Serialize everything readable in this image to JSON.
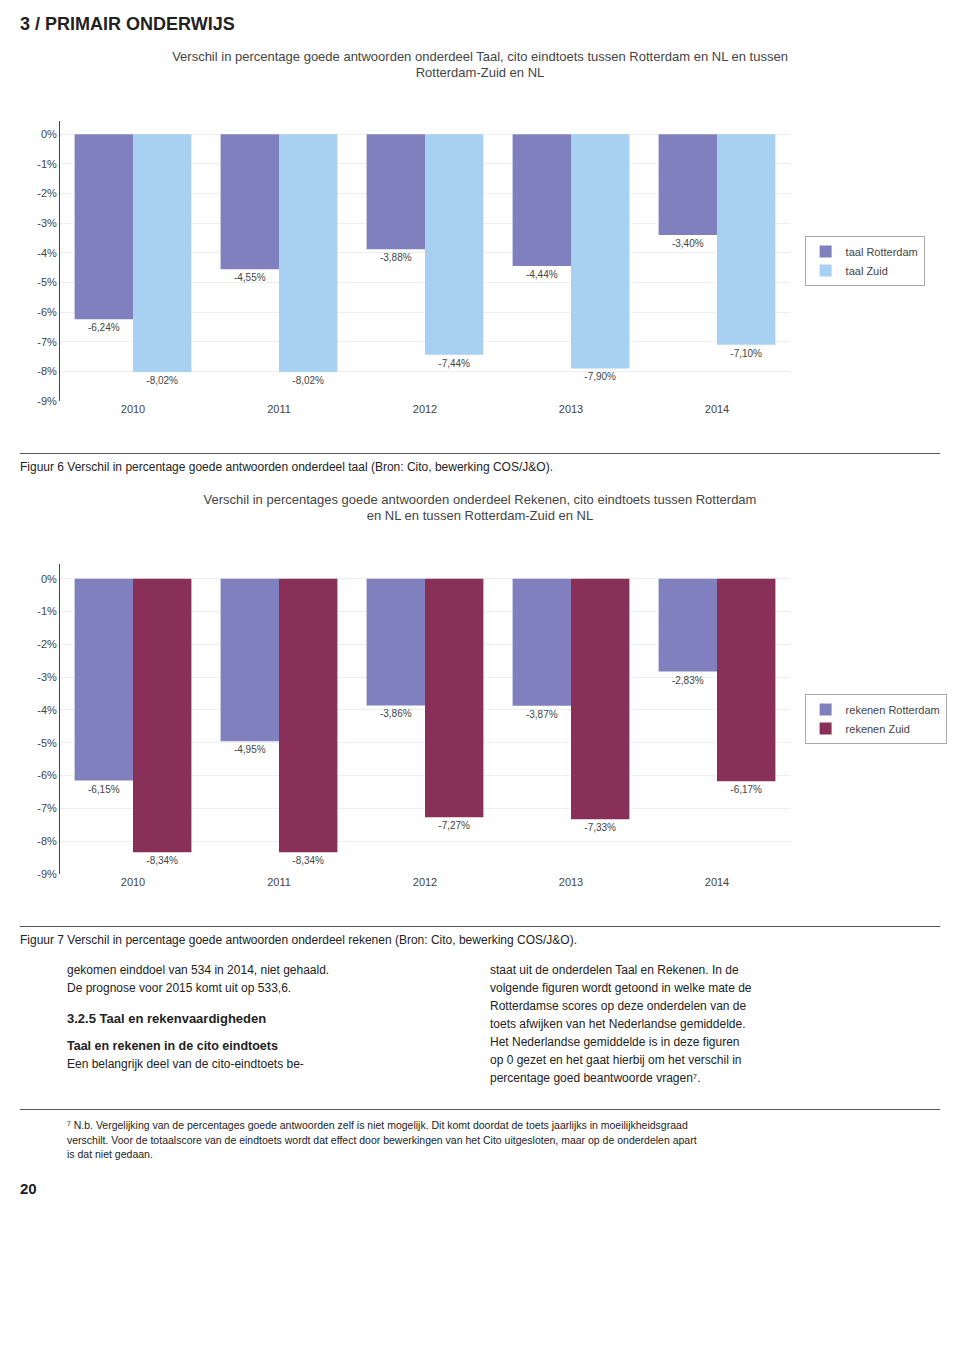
{
  "title": "3 / PRIMAIR ONDERWIJS",
  "annotations": [
    "gekomen einddoel van 534 in 2014, niet gehaald.\nDe prognose voor 2015 komt uit op 533,6.",
    "3.2.5 Taal en rekenvaardigheden",
    "Taal en rekenen in de cito eindtoets",
    "Een belangrijk deel van de cito-eindtoets be-",
    "staat uit de onderdelen Taal en Rekenen. In de\nvolgende figuren wordt getoond in welke mate de\nRotterdamse scores op deze onderdelen van de\ntoets afwijken van het Nederlandse gemiddelde.\nHet Nederlandse gemiddelde is in deze figuren\nop 0 gezet en het gaat hierbij om het verschil in\npercentage goed beantwoorde vragen⁷.",
    "⁷ N.b. Vergelijking van de percentages goede antwoorden zelf is niet mogelijk. Dit komt doordat de toets jaarlijks in moeilijkheidsgraad",
    "verschilt. Voor de totaalscore van de eindtoets wordt dat effect door bewerkingen van het Cito uitgesloten, maar op de onderdelen apart",
    "is dat niet gedaan.",
    "20"
  ],
  "chart_data": [
    {
      "type": "bar",
      "title": "Verschil in percentage goede antwoorden onderdeel Taal, cito eindtoets tussen Rotterdam en NL en tussen",
      "subtitle": "Rotterdam-Zuid en NL",
      "categories": [
        "2010",
        "2011",
        "2012",
        "2013",
        "2014"
      ],
      "series": [
        {
          "name": "taal Rotterdam",
          "color": "#8080bf",
          "values": [
            -6.24,
            -4.55,
            -3.88,
            -4.44,
            -3.4
          ],
          "value_labels": [
            "-6,24%",
            "-4,55%",
            "-3,88%",
            "-4,44%",
            "-3,40%"
          ]
        },
        {
          "name": "taal Zuid",
          "color": "#a8d0f0",
          "values": [
            -8.02,
            -8.02,
            -7.44,
            -7.9,
            -7.1
          ],
          "value_labels": [
            "-8,02%",
            "-8,02%",
            "-7,44%",
            "-7,90%",
            "-7,10%"
          ]
        }
      ],
      "ylim": [
        -9.0,
        0.45
      ],
      "yticks": [
        {
          "value": 0,
          "label": "0%"
        },
        {
          "value": -1,
          "label": "-1%"
        },
        {
          "value": -2,
          "label": "-2%"
        },
        {
          "value": -3,
          "label": "-3%"
        },
        {
          "value": -4,
          "label": "-4%"
        },
        {
          "value": -5,
          "label": "-5%"
        },
        {
          "value": -6,
          "label": "-6%"
        },
        {
          "value": -7,
          "label": "-7%"
        },
        {
          "value": -8,
          "label": "-8%"
        },
        {
          "value": -9,
          "label": "-9%"
        }
      ],
      "grid": true,
      "data_labels": true,
      "legend": "right",
      "annotations": [
        "Figuur 6 Verschil in percentage goede antwoorden onderdeel taal (Bron: Cito, bewerking COS/J&O)."
      ]
    },
    {
      "type": "bar",
      "title": "Verschil in percentages goede antwoorden onderdeel Rekenen, cito eindtoets tussen Rotterdam",
      "subtitle": "en NL en tussen Rotterdam-Zuid en NL",
      "categories": [
        "2010",
        "2011",
        "2012",
        "2013",
        "2014"
      ],
      "series": [
        {
          "name": "rekenen Rotterdam",
          "color": "#8080bf",
          "values": [
            -6.15,
            -4.95,
            -3.86,
            -3.87,
            -2.83
          ],
          "value_labels": [
            "-6,15%",
            "-4,95%",
            "-3,86%",
            "-3,87%",
            "-2,83%"
          ]
        },
        {
          "name": "rekenen Zuid",
          "color": "#883058",
          "values": [
            -8.34,
            -8.34,
            -7.27,
            -7.33,
            -6.17
          ],
          "value_labels": [
            "-8,34%",
            "-8,34%",
            "-7,27%",
            "-7,33%",
            "-6,17%"
          ]
        }
      ],
      "ylim": [
        -9.0,
        0.45
      ],
      "yticks": [
        {
          "value": 0,
          "label": "0%"
        },
        {
          "value": -1,
          "label": "-1%"
        },
        {
          "value": -2,
          "label": "-2%"
        },
        {
          "value": -3,
          "label": "-3%"
        },
        {
          "value": -4,
          "label": "-4%"
        },
        {
          "value": -5,
          "label": "-5%"
        },
        {
          "value": -6,
          "label": "-6%"
        },
        {
          "value": -7,
          "label": "-7%"
        },
        {
          "value": -8,
          "label": "-8%"
        },
        {
          "value": -9,
          "label": "-9%"
        }
      ],
      "grid": true,
      "data_labels": true,
      "legend": "right",
      "annotations": [
        "Figuur 7 Verschil in percentage goede antwoorden onderdeel rekenen (Bron: Cito, bewerking COS/J&O)."
      ]
    }
  ]
}
